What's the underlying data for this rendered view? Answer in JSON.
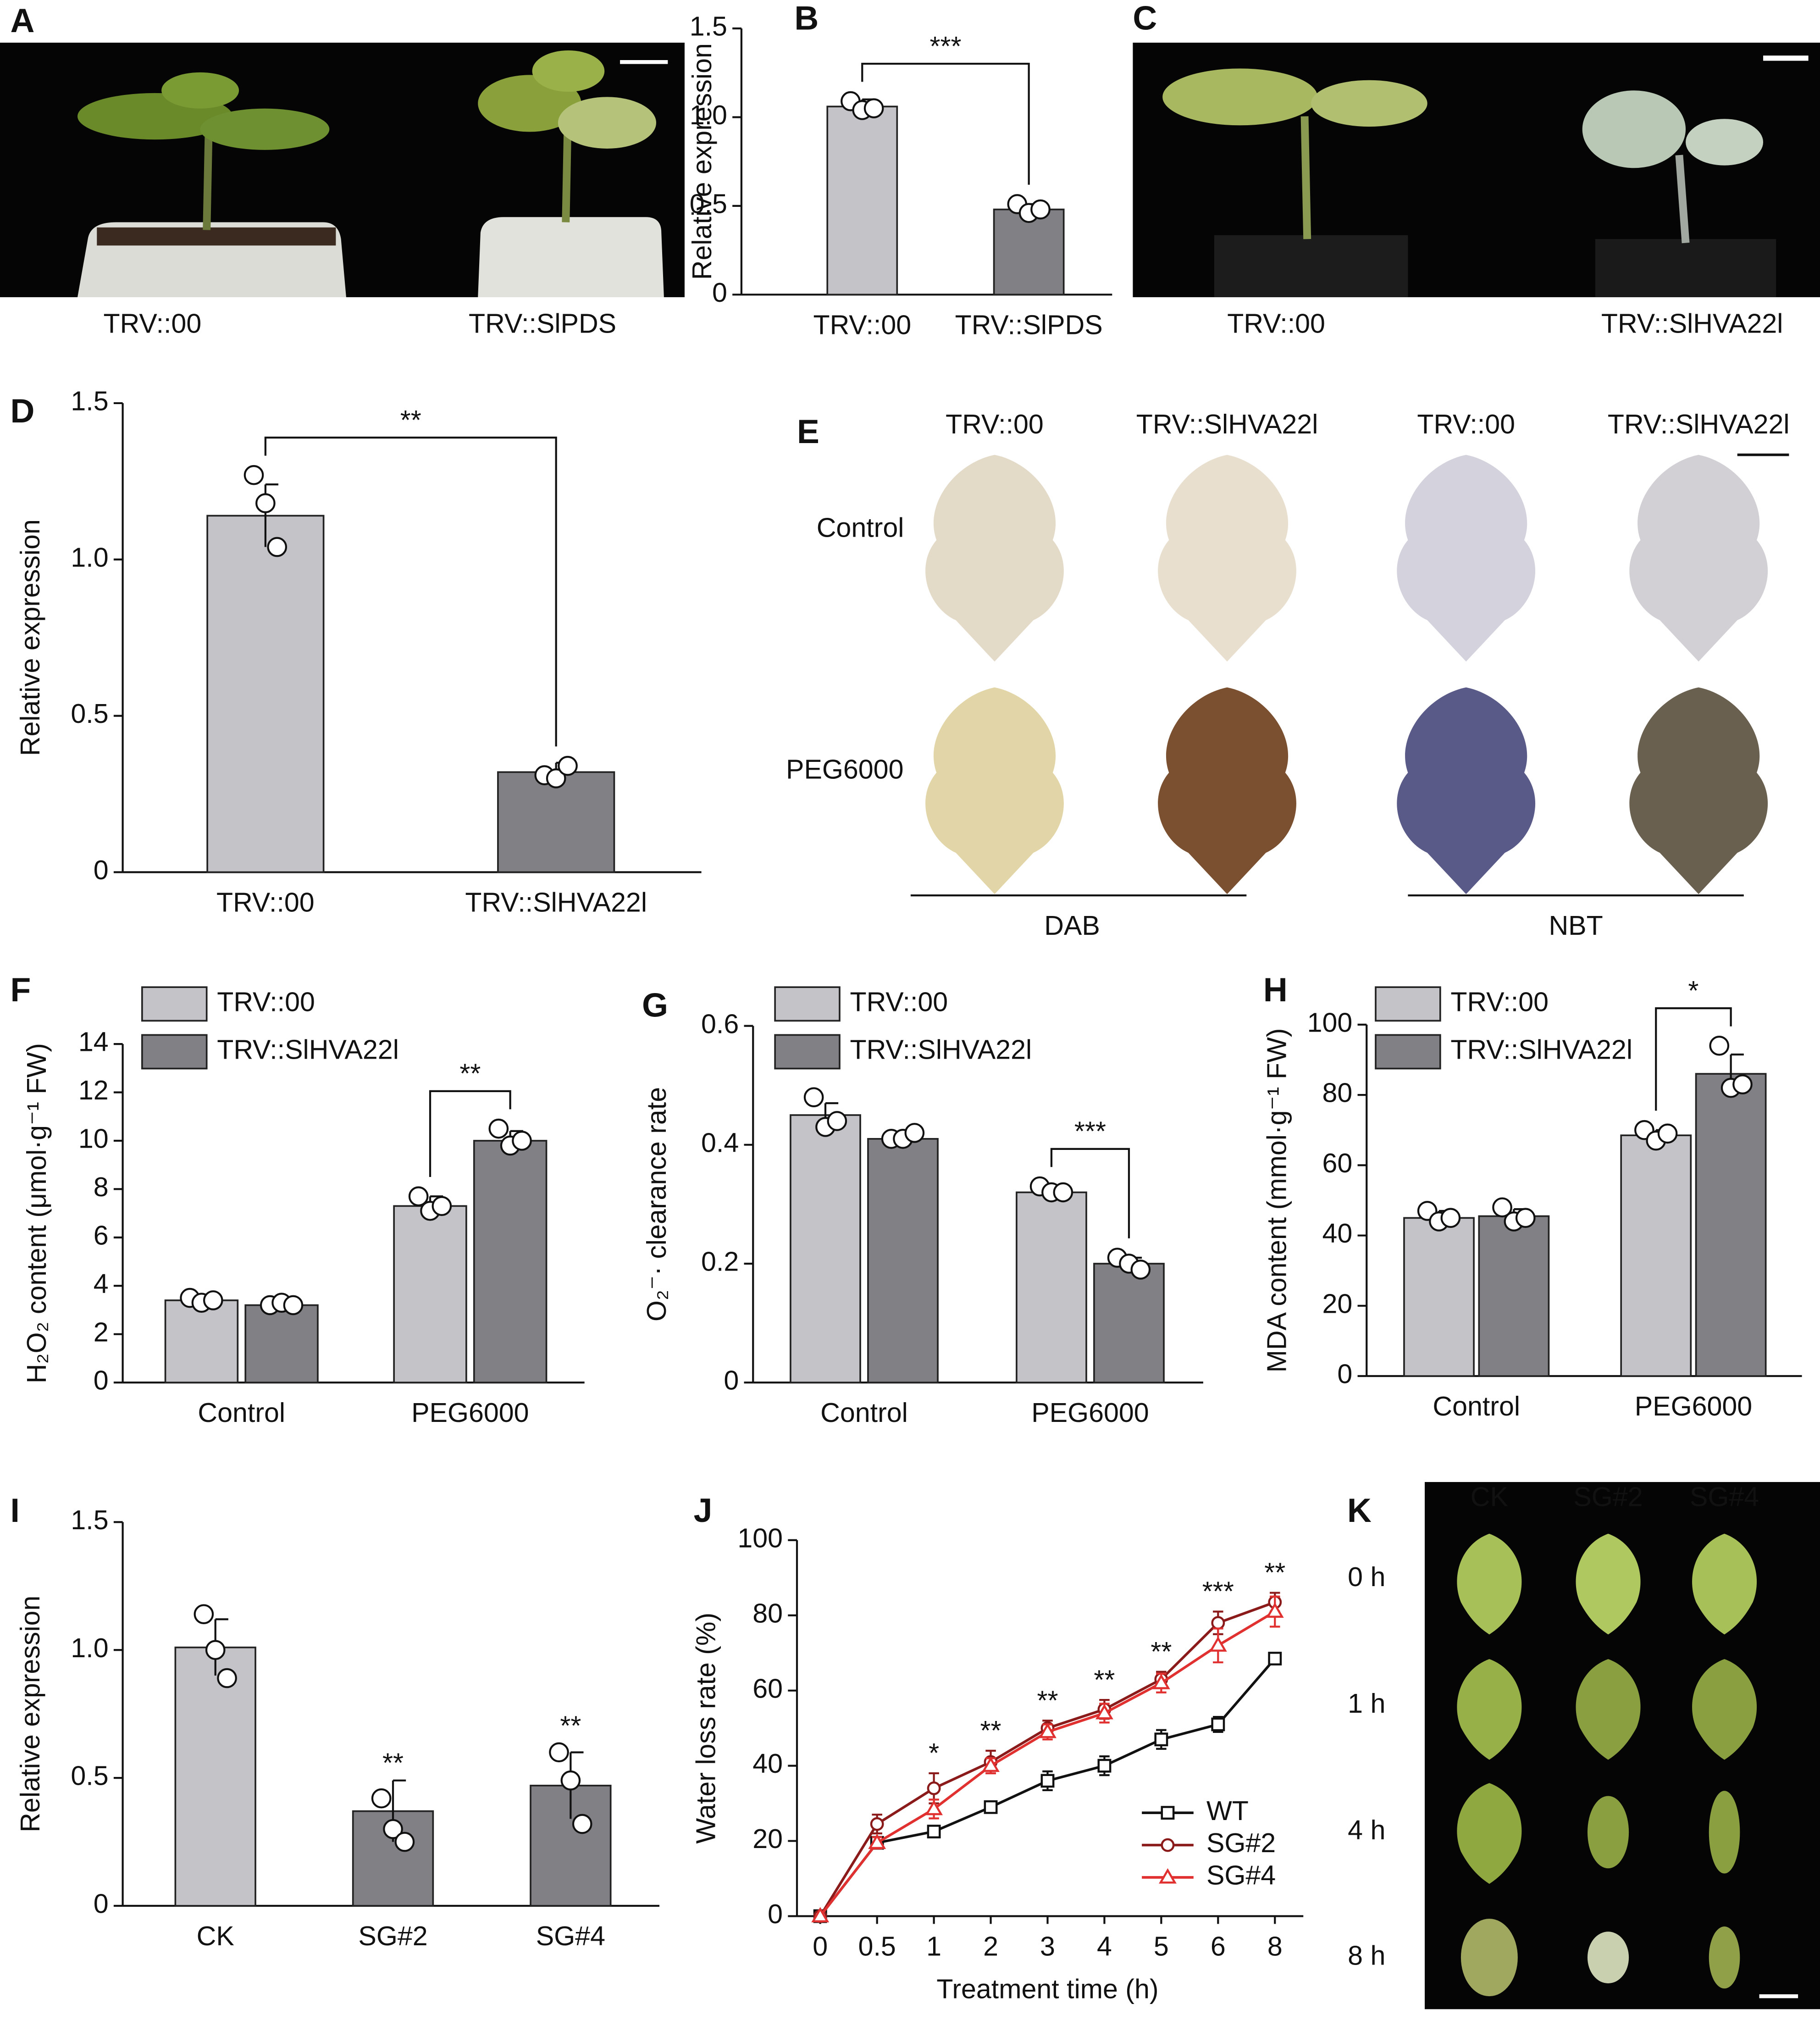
{
  "panel_labels": [
    "A",
    "B",
    "C",
    "D",
    "E",
    "F",
    "G",
    "H",
    "I",
    "J",
    "K"
  ],
  "photo_A": {
    "labels": [
      "TRV::00",
      "TRV::SlPDS"
    ]
  },
  "photo_C": {
    "labels": [
      "TRV::00",
      "TRV::SlHVA22l"
    ]
  },
  "photo_E": {
    "columns": [
      "TRV::00",
      "TRV::SlHVA22l",
      "TRV::00",
      "TRV::SlHVA22l"
    ],
    "rows": [
      "Control",
      "PEG6000"
    ],
    "stains": [
      "DAB",
      "NBT"
    ]
  },
  "photo_K": {
    "columns": [
      "CK",
      "SG#2",
      "SG#4"
    ],
    "rows": [
      "0 h",
      "1 h",
      "4 h",
      "8 h"
    ]
  },
  "chart_data": [
    {
      "type": "bar",
      "categories": [
        "TRV::00",
        "TRV::SlPDS"
      ],
      "values": [
        1.06,
        0.48
      ],
      "errors": [
        0.04,
        0.03
      ],
      "points": [
        [
          1.09,
          1.04,
          1.05
        ],
        [
          0.51,
          0.46,
          0.48
        ]
      ],
      "colors": [
        "#c4c3c8",
        "#808085"
      ],
      "ylabel": "Relative expression",
      "ylim": [
        0,
        1.5
      ],
      "yticks": [
        0,
        0.5,
        {
          "value": 1,
          "label": "1.0"
        },
        1.5
      ],
      "significance": "***"
    },
    {
      "type": "bar",
      "categories": [
        "TRV::00",
        "TRV::SlHVA22l"
      ],
      "values": [
        1.14,
        0.32
      ],
      "errors": [
        0.1,
        0.03
      ],
      "points": [
        [
          1.27,
          1.18,
          1.04
        ],
        [
          0.31,
          0.3,
          0.34
        ]
      ],
      "colors": [
        "#c4c3c8",
        "#808085"
      ],
      "ylabel": "Relative expression",
      "ylim": [
        0,
        1.5
      ],
      "yticks": [
        0,
        0.5,
        {
          "value": 1,
          "label": "1.0"
        },
        1.5
      ],
      "significance": "**"
    },
    {
      "type": "bar",
      "categories": [
        "Control",
        "PEG6000"
      ],
      "series": [
        {
          "name": "TRV::00",
          "color": "#c4c3c8",
          "values": [
            3.4,
            7.3
          ],
          "errors": [
            0.2,
            0.4
          ],
          "points": [
            [
              3.5,
              3.3,
              3.4
            ],
            [
              7.7,
              7.1,
              7.3
            ]
          ]
        },
        {
          "name": "TRV::SlHVA22l",
          "color": "#808085",
          "values": [
            3.2,
            10
          ],
          "errors": [
            0.1,
            0.4
          ],
          "points": [
            [
              3.2,
              3.3,
              3.2
            ],
            [
              10.5,
              9.8,
              10
            ]
          ]
        }
      ],
      "ylabel": "H₂O₂ content (μmol·g⁻¹ FW)",
      "ylim": [
        0,
        14
      ],
      "yticks": [
        0,
        2,
        4,
        6,
        8,
        10,
        12,
        14
      ],
      "significance": [
        null,
        "**"
      ]
    },
    {
      "type": "bar",
      "categories": [
        "Control",
        "PEG6000"
      ],
      "series": [
        {
          "name": "TRV::00",
          "color": "#c4c3c8",
          "values": [
            0.45,
            0.32
          ],
          "errors": [
            0.02,
            0.005
          ],
          "points": [
            [
              0.48,
              0.43,
              0.44
            ],
            [
              0.33,
              0.32,
              0.32
            ]
          ]
        },
        {
          "name": "TRV::SlHVA22l",
          "color": "#808085",
          "values": [
            0.41,
            0.2
          ],
          "errors": [
            0.005,
            0.01
          ],
          "points": [
            [
              0.41,
              0.41,
              0.42
            ],
            [
              0.21,
              0.2,
              0.19
            ]
          ]
        }
      ],
      "ylabel": "O₂⁻· clearance rate",
      "ylim": [
        0,
        0.6
      ],
      "yticks": [
        0,
        0.2,
        0.4,
        0.6
      ],
      "significance": [
        null,
        "***"
      ]
    },
    {
      "type": "bar",
      "categories": [
        "Control",
        "PEG6000"
      ],
      "series": [
        {
          "name": "TRV::00",
          "color": "#c4c3c8",
          "values": [
            45,
            68.5
          ],
          "errors": [
            2,
            1.5
          ],
          "points": [
            [
              47,
              44,
              45
            ],
            [
              70,
              67,
              69
            ]
          ]
        },
        {
          "name": "TRV::SlHVA22l",
          "color": "#808085",
          "values": [
            45.5,
            86
          ],
          "errors": [
            2,
            5.5
          ],
          "points": [
            [
              48,
              44,
              45
            ],
            [
              94,
              82,
              83
            ]
          ]
        }
      ],
      "ylabel": "MDA content (mmol·g⁻¹ FW)",
      "ylim": [
        0,
        100
      ],
      "yticks": [
        0,
        20,
        40,
        60,
        80,
        100
      ],
      "significance": [
        null,
        "*"
      ]
    },
    {
      "type": "bar",
      "categories": [
        "CK",
        "SG#2",
        "SG#4"
      ],
      "values": [
        1.01,
        0.37,
        0.47
      ],
      "errors": [
        0.11,
        0.12,
        0.13
      ],
      "points": [
        [
          1.14,
          1,
          0.89
        ],
        [
          0.42,
          0.3,
          0.25
        ],
        [
          0.6,
          0.49,
          0.32
        ]
      ],
      "colors": [
        "#c4c3c8",
        "#808085",
        "#808085"
      ],
      "ylabel": "Relative expression",
      "ylim": [
        0,
        1.5
      ],
      "yticks": [
        0,
        0.5,
        {
          "value": 1,
          "label": "1.0"
        },
        1.5
      ],
      "significance": [
        null,
        "**",
        "**"
      ]
    },
    {
      "type": "line",
      "categories": [
        "0",
        "0.5",
        "1",
        "2",
        "3",
        "4",
        "5",
        "6",
        "8"
      ],
      "series": [
        {
          "name": "WT",
          "color": "#111111",
          "marker": "square",
          "values": [
            0,
            19.5,
            22.5,
            29,
            36,
            40,
            47,
            51,
            68.5
          ],
          "errors": [
            0,
            1,
            1.5,
            1.5,
            2.5,
            2.5,
            2.5,
            2,
            1.5
          ]
        },
        {
          "name": "SG#2",
          "color": "#8b1a1a",
          "marker": "circle",
          "values": [
            0,
            24.5,
            34,
            41,
            50,
            55,
            63,
            78,
            83.5
          ],
          "errors": [
            0,
            2.5,
            4,
            3,
            2,
            2.5,
            2,
            3,
            2.5
          ]
        },
        {
          "name": "SG#4",
          "color": "#e03030",
          "marker": "triangle",
          "values": [
            0,
            19.5,
            28.5,
            40,
            49,
            54,
            62,
            72,
            81
          ],
          "errors": [
            0,
            1.5,
            2.5,
            2,
            2,
            2.5,
            2.5,
            4.5,
            4
          ]
        }
      ],
      "xlabel": "Treatment time (h)",
      "ylabel": "Water loss rate (%)",
      "ylim": [
        0,
        100
      ],
      "yticks": [
        0,
        20,
        40,
        60,
        80,
        100
      ],
      "significance": [
        null,
        null,
        "*",
        "**",
        "**",
        "**",
        "**",
        "***",
        "**"
      ],
      "legend": "lower right"
    }
  ]
}
